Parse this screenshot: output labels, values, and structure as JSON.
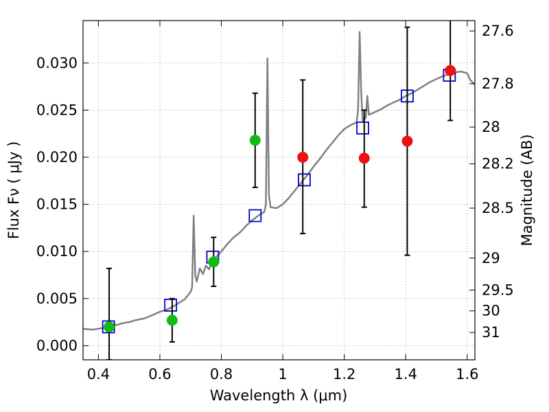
{
  "chart_data": {
    "type": "scatter",
    "xlabel": "Wavelength  λ (μm)",
    "ylabel": "Flux  Fν  ( μJy )",
    "ylabel_right": "Magnitude (AB)",
    "xlim": [
      0.35,
      1.625
    ],
    "ylim": [
      -0.0015,
      0.0345
    ],
    "grid": true,
    "x_ticks": [
      0.4,
      0.6,
      0.8,
      1.0,
      1.2,
      1.4,
      1.6
    ],
    "x_tick_labels": [
      "0.4",
      "0.6",
      "0.8",
      "1",
      "1.2",
      "1.4",
      "1.6"
    ],
    "y_ticks": [
      0.0,
      0.005,
      0.01,
      0.015,
      0.02,
      0.025,
      0.03
    ],
    "y_tick_labels": [
      "0.000",
      "0.005",
      "0.010",
      "0.015",
      "0.020",
      "0.025",
      "0.030"
    ],
    "right_ticks": [
      {
        "flux": 0.0334,
        "label": "27.6"
      },
      {
        "flux": 0.0278,
        "label": "27.8"
      },
      {
        "flux": 0.0232,
        "label": "28"
      },
      {
        "flux": 0.0193,
        "label": "28.2"
      },
      {
        "flux": 0.0146,
        "label": "28.5"
      },
      {
        "flux": 0.0093,
        "label": "29"
      },
      {
        "flux": 0.0059,
        "label": "29.5"
      },
      {
        "flux": 0.0037,
        "label": "30"
      },
      {
        "flux": 0.0014,
        "label": "31"
      }
    ],
    "colors": {
      "spectrum": "#808080",
      "model_box": "#0000cc",
      "green": "#11bb11",
      "red": "#ee1111",
      "errorbar": "#000000",
      "grid": "#999999"
    },
    "spectrum": [
      [
        0.35,
        0.0018
      ],
      [
        0.38,
        0.0017
      ],
      [
        0.4,
        0.0018
      ],
      [
        0.42,
        0.0019
      ],
      [
        0.44,
        0.0021
      ],
      [
        0.46,
        0.0022
      ],
      [
        0.48,
        0.0024
      ],
      [
        0.5,
        0.0025
      ],
      [
        0.52,
        0.0027
      ],
      [
        0.55,
        0.0029
      ],
      [
        0.58,
        0.0033
      ],
      [
        0.6,
        0.0036
      ],
      [
        0.62,
        0.0038
      ],
      [
        0.64,
        0.0041
      ],
      [
        0.66,
        0.0045
      ],
      [
        0.68,
        0.0049
      ],
      [
        0.7,
        0.0057
      ],
      [
        0.705,
        0.0062
      ],
      [
        0.71,
        0.0138
      ],
      [
        0.715,
        0.0075
      ],
      [
        0.72,
        0.0068
      ],
      [
        0.73,
        0.0082
      ],
      [
        0.74,
        0.0076
      ],
      [
        0.75,
        0.0085
      ],
      [
        0.76,
        0.0081
      ],
      [
        0.77,
        0.0089
      ],
      [
        0.78,
        0.0093
      ],
      [
        0.8,
        0.01
      ],
      [
        0.82,
        0.0108
      ],
      [
        0.84,
        0.0115
      ],
      [
        0.86,
        0.012
      ],
      [
        0.88,
        0.0127
      ],
      [
        0.9,
        0.0133
      ],
      [
        0.92,
        0.0138
      ],
      [
        0.94,
        0.0142
      ],
      [
        0.945,
        0.015
      ],
      [
        0.95,
        0.0305
      ],
      [
        0.955,
        0.016
      ],
      [
        0.96,
        0.0147
      ],
      [
        0.98,
        0.0146
      ],
      [
        1.0,
        0.015
      ],
      [
        1.02,
        0.0157
      ],
      [
        1.04,
        0.0165
      ],
      [
        1.06,
        0.0173
      ],
      [
        1.08,
        0.0181
      ],
      [
        1.1,
        0.019
      ],
      [
        1.12,
        0.0198
      ],
      [
        1.14,
        0.0207
      ],
      [
        1.16,
        0.0215
      ],
      [
        1.18,
        0.0223
      ],
      [
        1.2,
        0.023
      ],
      [
        1.22,
        0.0234
      ],
      [
        1.24,
        0.0237
      ],
      [
        1.245,
        0.025
      ],
      [
        1.25,
        0.0333
      ],
      [
        1.255,
        0.027
      ],
      [
        1.26,
        0.0238
      ],
      [
        1.27,
        0.0242
      ],
      [
        1.275,
        0.0265
      ],
      [
        1.28,
        0.0245
      ],
      [
        1.3,
        0.0248
      ],
      [
        1.32,
        0.0251
      ],
      [
        1.34,
        0.0255
      ],
      [
        1.36,
        0.0258
      ],
      [
        1.38,
        0.0261
      ],
      [
        1.4,
        0.0265
      ],
      [
        1.42,
        0.0268
      ],
      [
        1.44,
        0.0272
      ],
      [
        1.46,
        0.0276
      ],
      [
        1.48,
        0.028
      ],
      [
        1.5,
        0.0283
      ],
      [
        1.52,
        0.0286
      ],
      [
        1.54,
        0.0288
      ],
      [
        1.56,
        0.029
      ],
      [
        1.58,
        0.0291
      ],
      [
        1.6,
        0.0289
      ],
      [
        1.61,
        0.0282
      ],
      [
        1.625,
        0.0277
      ]
    ],
    "model_boxes": [
      {
        "x": 0.433,
        "y": 0.002
      },
      {
        "x": 0.635,
        "y": 0.0043
      },
      {
        "x": 0.772,
        "y": 0.0094
      },
      {
        "x": 0.91,
        "y": 0.0138
      },
      {
        "x": 1.07,
        "y": 0.0176
      },
      {
        "x": 1.26,
        "y": 0.0231
      },
      {
        "x": 1.405,
        "y": 0.0265
      },
      {
        "x": 1.542,
        "y": 0.0287
      }
    ],
    "observations": [
      {
        "x": 0.435,
        "y": 0.002,
        "yerr_low": -0.0015,
        "yerr_high": 0.0082,
        "color": "green"
      },
      {
        "x": 0.64,
        "y": 0.0027,
        "yerr_low": 0.0004,
        "yerr_high": 0.005,
        "color": "green"
      },
      {
        "x": 0.775,
        "y": 0.0089,
        "yerr_low": 0.0063,
        "yerr_high": 0.0115,
        "color": "green"
      },
      {
        "x": 0.91,
        "y": 0.0218,
        "yerr_low": 0.0168,
        "yerr_high": 0.0268,
        "color": "green"
      },
      {
        "x": 1.065,
        "y": 0.02,
        "yerr_low": 0.0119,
        "yerr_high": 0.0282,
        "color": "red"
      },
      {
        "x": 1.265,
        "y": 0.0199,
        "yerr_low": 0.0147,
        "yerr_high": 0.025,
        "color": "red"
      },
      {
        "x": 1.405,
        "y": 0.0217,
        "yerr_low": 0.0096,
        "yerr_high": 0.0338,
        "color": "red"
      },
      {
        "x": 1.545,
        "y": 0.0292,
        "yerr_low": 0.0239,
        "yerr_high": 0.0346,
        "color": "red"
      }
    ]
  }
}
